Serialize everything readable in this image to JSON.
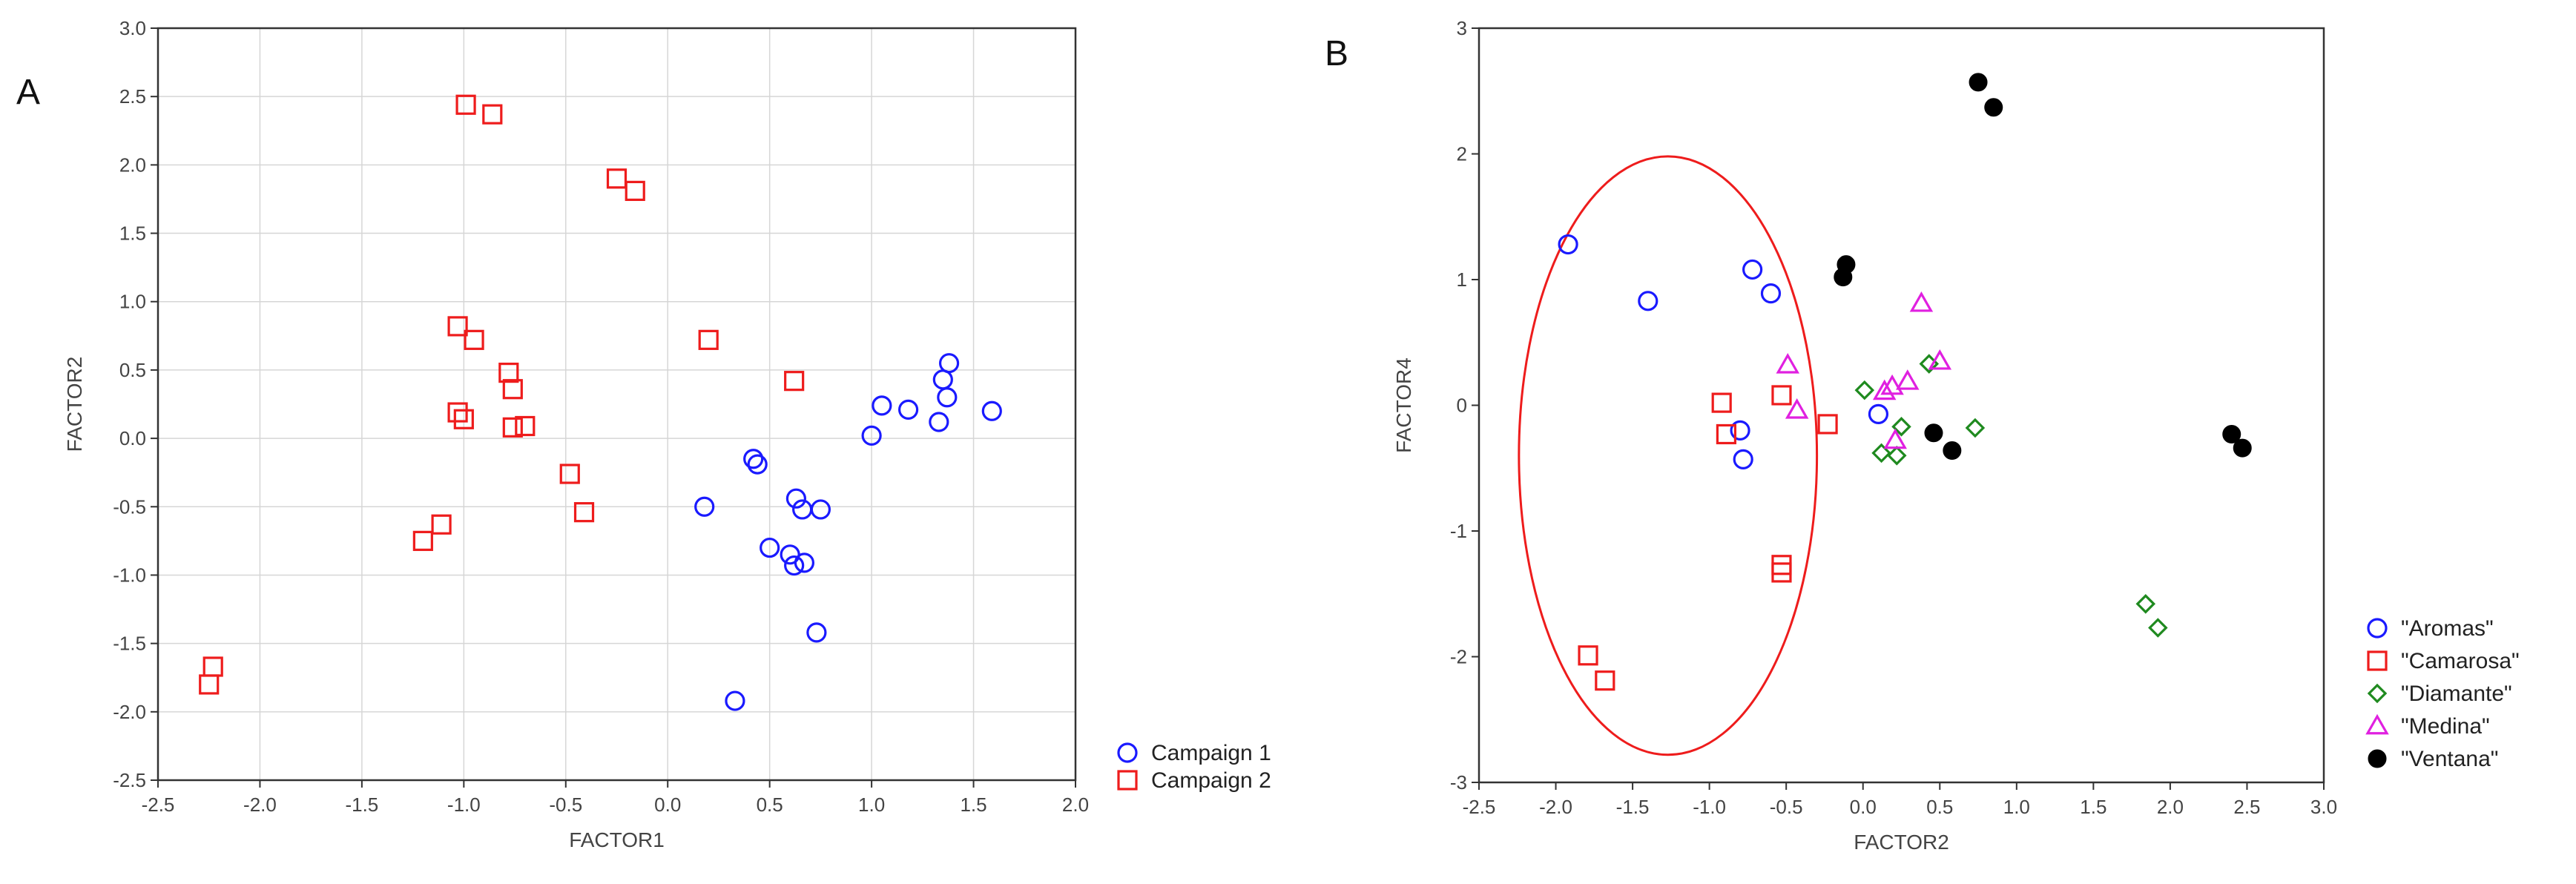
{
  "chart_data": [
    {
      "panel_label": "A",
      "type": "scatter",
      "title": "",
      "xlabel": "FACTOR1",
      "ylabel": "FACTOR2",
      "xlim": [
        -2.5,
        2.0
      ],
      "ylim": [
        -2.5,
        3.0
      ],
      "xticks": [
        "-2.5",
        "-2.0",
        "-1.5",
        "-1.0",
        "-0.5",
        "0.0",
        "0.5",
        "1.0",
        "1.5",
        "2.0"
      ],
      "yticks": [
        "-2.5",
        "-2.0",
        "-1.5",
        "-1.0",
        "-0.5",
        "0.0",
        "0.5",
        "1.0",
        "1.5",
        "2.0",
        "2.5",
        "3.0"
      ],
      "grid": true,
      "legend_position": "bottom-right-outside",
      "series": [
        {
          "name": "Campaign 1",
          "marker": "circle",
          "color": "#1a1aff",
          "points": [
            [
              0.18,
              -0.5
            ],
            [
              0.42,
              -0.15
            ],
            [
              0.44,
              -0.19
            ],
            [
              0.5,
              -0.8
            ],
            [
              0.6,
              -0.85
            ],
            [
              0.62,
              -0.93
            ],
            [
              0.67,
              -0.91
            ],
            [
              0.63,
              -0.44
            ],
            [
              0.66,
              -0.52
            ],
            [
              0.75,
              -0.52
            ],
            [
              0.73,
              -1.42
            ],
            [
              0.33,
              -1.92
            ],
            [
              1.0,
              0.02
            ],
            [
              1.05,
              0.24
            ],
            [
              1.18,
              0.21
            ],
            [
              1.33,
              0.12
            ],
            [
              1.35,
              0.43
            ],
            [
              1.37,
              0.3
            ],
            [
              1.38,
              0.55
            ],
            [
              1.59,
              0.2
            ]
          ]
        },
        {
          "name": "Campaign 2",
          "marker": "square",
          "color": "#ee1c1c",
          "points": [
            [
              -2.25,
              -1.8
            ],
            [
              -2.23,
              -1.67
            ],
            [
              -1.2,
              -0.75
            ],
            [
              -1.11,
              -0.63
            ],
            [
              -1.03,
              0.19
            ],
            [
              -1.0,
              0.14
            ],
            [
              -1.03,
              0.82
            ],
            [
              -0.95,
              0.72
            ],
            [
              -0.99,
              2.44
            ],
            [
              -0.86,
              2.37
            ],
            [
              -0.78,
              0.48
            ],
            [
              -0.76,
              0.36
            ],
            [
              -0.76,
              0.08
            ],
            [
              -0.7,
              0.09
            ],
            [
              -0.48,
              -0.26
            ],
            [
              -0.41,
              -0.54
            ],
            [
              -0.25,
              1.9
            ],
            [
              -0.16,
              1.81
            ],
            [
              0.2,
              0.72
            ],
            [
              0.62,
              0.42
            ]
          ]
        }
      ]
    },
    {
      "panel_label": "B",
      "type": "scatter",
      "title": "",
      "xlabel": "FACTOR2",
      "ylabel": "FACTOR4",
      "xlim": [
        -2.5,
        3.0
      ],
      "ylim": [
        -3,
        3
      ],
      "xticks": [
        "-2.5",
        "-2.0",
        "-1.5",
        "-1.0",
        "-0.5",
        "0.0",
        "0.5",
        "1.0",
        "1.5",
        "2.0",
        "2.5",
        "3.0"
      ],
      "yticks": [
        "-3",
        "-2",
        "-1",
        "0",
        "1",
        "2",
        "3"
      ],
      "grid": false,
      "legend_position": "bottom-right-outside",
      "annotation": {
        "shape": "ellipse",
        "color": "#ee1c1c",
        "center": [
          -1.27,
          -0.4
        ],
        "radii": [
          0.97,
          2.38
        ]
      },
      "series": [
        {
          "name": "\"Aromas\"",
          "marker": "circle",
          "color": "#1a1aff",
          "points": [
            [
              -1.92,
              1.28
            ],
            [
              -1.4,
              0.83
            ],
            [
              -0.72,
              1.08
            ],
            [
              -0.6,
              0.89
            ],
            [
              0.1,
              -0.07
            ],
            [
              -0.8,
              -0.2
            ],
            [
              -0.78,
              -0.43
            ]
          ]
        },
        {
          "name": "\"Camarosa\"",
          "marker": "square",
          "color": "#ee1c1c",
          "points": [
            [
              -0.92,
              0.02
            ],
            [
              -0.89,
              -0.23
            ],
            [
              -0.53,
              0.08
            ],
            [
              -0.23,
              -0.15
            ],
            [
              -0.53,
              -1.27
            ],
            [
              -0.53,
              -1.33
            ],
            [
              -1.79,
              -1.99
            ],
            [
              -1.68,
              -2.19
            ]
          ]
        },
        {
          "name": "\"Diamante\"",
          "marker": "diamond",
          "color": "#1f8a1f",
          "points": [
            [
              0.01,
              0.12
            ],
            [
              0.12,
              -0.38
            ],
            [
              0.22,
              -0.4
            ],
            [
              0.25,
              -0.17
            ],
            [
              0.43,
              0.33
            ],
            [
              0.73,
              -0.18
            ],
            [
              1.84,
              -1.58
            ],
            [
              1.92,
              -1.77
            ]
          ]
        },
        {
          "name": "\"Medina\"",
          "marker": "triangle",
          "color": "#e020e0",
          "points": [
            [
              -0.49,
              0.32
            ],
            [
              -0.43,
              -0.04
            ],
            [
              0.14,
              0.11
            ],
            [
              0.19,
              0.15
            ],
            [
              0.29,
              0.19
            ],
            [
              0.21,
              -0.28
            ],
            [
              0.38,
              0.81
            ],
            [
              0.5,
              0.35
            ]
          ]
        },
        {
          "name": "\"Ventana\"",
          "marker": "filled-circle",
          "color": "#000000",
          "points": [
            [
              0.75,
              2.57
            ],
            [
              0.85,
              2.37
            ],
            [
              -0.13,
              1.02
            ],
            [
              -0.11,
              1.12
            ],
            [
              0.46,
              -0.22
            ],
            [
              0.58,
              -0.36
            ],
            [
              2.4,
              -0.23
            ],
            [
              2.47,
              -0.34
            ]
          ]
        }
      ]
    }
  ]
}
